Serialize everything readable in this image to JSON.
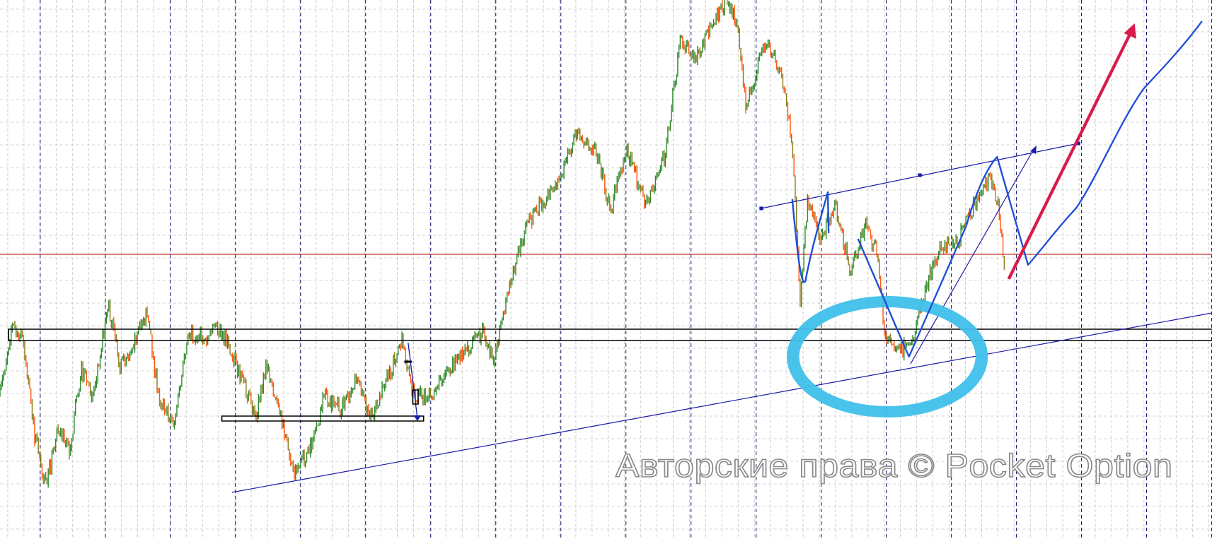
{
  "watermark": "Авторские права © Pocket Option",
  "colors": {
    "up_candle": "#2e8b2e",
    "down_candle": "#ff5a14",
    "neutral_candle": "#8a7a1a",
    "grid_major": "#1a1a6e",
    "grid_minor": "#c8c8c8",
    "resistance_line": "#c0392b",
    "support_lines": "#000000",
    "trend_line": "#1a1aa8",
    "drawing_blue": "#1f4fd6",
    "arrow_red": "#d81b4c",
    "highlight_circle": "#3fc0ea"
  },
  "chart_data": {
    "type": "line",
    "title": "",
    "xlabel": "",
    "ylabel": "",
    "grid": true,
    "ylim": [
      0,
      100
    ],
    "x": [
      0,
      1.5,
      3,
      4.5,
      6,
      7.5,
      9,
      10.5,
      12,
      14,
      15.5,
      17.5,
      19,
      20.5,
      22.5,
      24.5,
      26.5,
      28,
      30,
      33,
      34.5,
      36.5,
      38,
      40,
      42,
      44,
      46,
      48,
      50,
      52,
      53.5,
      56,
      58,
      60,
      62.5,
      64,
      66,
      68,
      70,
      72,
      74.5,
      77,
      79,
      81,
      83.5,
      86,
      88,
      90,
      92,
      94,
      95.5,
      96.5,
      99,
      101,
      102.5,
      103.5,
      104.5,
      106,
      108,
      110,
      112,
      113.5,
      114.5,
      116.5,
      118,
      120,
      121.5,
      124,
      126,
      128,
      129.2,
      130
    ],
    "values": [
      26.6,
      39.7,
      37.1,
      18.7,
      9.6,
      21.4,
      16.1,
      31.8,
      26.6,
      43.6,
      31.8,
      37.1,
      42.3,
      26.6,
      21.4,
      38.4,
      37.1,
      39.7,
      34.5,
      22.7,
      31.8,
      21.4,
      12.2,
      16.1,
      26.6,
      24.0,
      29.2,
      22.7,
      29.2,
      37.1,
      26.6,
      26.6,
      31.8,
      34.5,
      38.4,
      33.2,
      47.6,
      58.1,
      62.0,
      65.9,
      75.1,
      72.5,
      60.7,
      72.5,
      62.0,
      71.2,
      92.1,
      89.5,
      94.8,
      100,
      94.8,
      80.3,
      92.1,
      86.9,
      73.8,
      43.6,
      63.3,
      55.4,
      62.0,
      50.2,
      58.1,
      52.8,
      37.1,
      34.5,
      37.1,
      47.6,
      54.1,
      55.4,
      62.0,
      67.2,
      62.0,
      48.9
    ]
  }
}
